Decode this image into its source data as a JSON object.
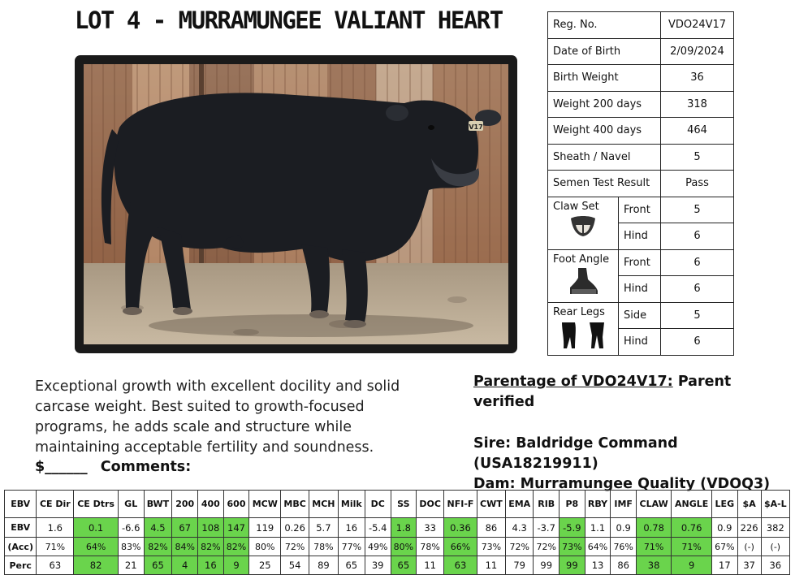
{
  "title": "LOT 4 - MURRAMUNGEE VALIANT HEART",
  "photo": {
    "ear_tag": "V17"
  },
  "details": {
    "rows": [
      {
        "label": "Reg. No.",
        "value": "VDO24V17"
      },
      {
        "label": "Date of Birth",
        "value": "2/09/2024"
      },
      {
        "label": "Birth Weight",
        "value": "36"
      },
      {
        "label": "Weight 200 days",
        "value": "318"
      },
      {
        "label": "Weight 400 days",
        "value": "464"
      },
      {
        "label": "Sheath / Navel",
        "value": "5"
      },
      {
        "label": "Semen Test Result",
        "value": "Pass"
      }
    ],
    "claw_set": {
      "label": "Claw Set",
      "front_label": "Front",
      "front": "5",
      "hind_label": "Hind",
      "hind": "6",
      "icon": "claw-icon"
    },
    "foot_angle": {
      "label": "Foot Angle",
      "front_label": "Front",
      "front": "6",
      "hind_label": "Hind",
      "hind": "6",
      "icon": "hoof-icon"
    },
    "rear_legs": {
      "label": "Rear Legs",
      "side_label": "Side",
      "side": "5",
      "hind_label": "Hind",
      "hind": "6",
      "icon": "rear-legs-icon"
    }
  },
  "description": "Exceptional growth with excellent docility and solid carcase weight. Best suited to growth-focused programs, he adds scale and structure while maintaining acceptable fertility and soundness.",
  "price": {
    "blank": "$______",
    "comments_label": "Comments:"
  },
  "parentage": {
    "label": "Parentage of VDO24V17:",
    "status": "Parent verified",
    "sire": "Sire: Baldridge Command (USA18219911)",
    "dam": "Dam: Murramungee Quality (VDOQ3)"
  },
  "ebv_table": {
    "headers": [
      "EBV",
      "CE Dir",
      "CE Dtrs",
      "GL",
      "BWT",
      "200",
      "400",
      "600",
      "MCW",
      "MBC",
      "MCH",
      "Milk",
      "DC",
      "SS",
      "DOC",
      "NFI-F",
      "CWT",
      "EMA",
      "RIB",
      "P8",
      "RBY",
      "IMF",
      "CLAW",
      "ANGLE",
      "LEG",
      "$A",
      "$A-L"
    ],
    "rows": [
      {
        "label": "EBV",
        "cells": [
          "1.6",
          "0.1",
          "-6.6",
          "4.5",
          "67",
          "108",
          "147",
          "119",
          "0.26",
          "5.7",
          "16",
          "-5.4",
          "1.8",
          "33",
          "0.36",
          "86",
          "4.3",
          "-3.7",
          "-5.9",
          "1.1",
          "0.9",
          "0.78",
          "0.76",
          "0.9",
          "226",
          "382"
        ]
      },
      {
        "label": "(Acc)",
        "cells": [
          "71%",
          "64%",
          "83%",
          "82%",
          "84%",
          "82%",
          "82%",
          "80%",
          "72%",
          "78%",
          "77%",
          "49%",
          "80%",
          "78%",
          "66%",
          "73%",
          "72%",
          "72%",
          "73%",
          "64%",
          "76%",
          "71%",
          "71%",
          "67%",
          "(-)",
          "(-)"
        ]
      },
      {
        "label": "Perc",
        "cells": [
          "63",
          "82",
          "21",
          "65",
          "4",
          "16",
          "9",
          "25",
          "54",
          "89",
          "65",
          "39",
          "65",
          "11",
          "63",
          "11",
          "79",
          "99",
          "99",
          "13",
          "86",
          "38",
          "9",
          "17",
          "37",
          "36"
        ]
      }
    ],
    "highlight_color": "#6ad44c",
    "highlight_columns": [
      2,
      4,
      5,
      6,
      7,
      13,
      15,
      19,
      22,
      23
    ]
  }
}
